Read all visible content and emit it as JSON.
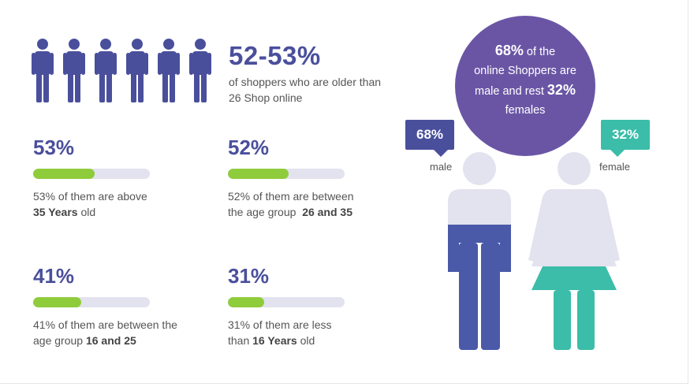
{
  "headline": {
    "value": "52-53%",
    "desc": "of shoppers who are older than 26 Shop online"
  },
  "stats": [
    {
      "pct": "53%",
      "fill": 0.53,
      "line1": "53% of them are above",
      "bold": "35 Years",
      "rest": " old"
    },
    {
      "pct": "52%",
      "fill": 0.52,
      "line1": "52% of them are between",
      "prefix": "the age group  ",
      "bold": "26 and 35"
    },
    {
      "pct": "41%",
      "fill": 0.41,
      "line1": "41% of them are between the",
      "prefix": "age group ",
      "bold": "16 and 25"
    },
    {
      "pct": "31%",
      "fill": 0.31,
      "line1": "31% of them are less",
      "prefix": "than ",
      "bold": "16 Years",
      "rest": " old"
    }
  ],
  "bubble": {
    "l1_bold": "68%",
    "l1_rest": " of the",
    "l2": "online Shoppers are",
    "l3_text": "male and rest ",
    "l3_bold": "32%",
    "l4": "females"
  },
  "male": {
    "pct": "68%",
    "label": "male",
    "share": 0.68
  },
  "female": {
    "pct": "32%",
    "label": "female",
    "share": 0.32
  },
  "colors": {
    "primary": "#4a4f9c",
    "green": "#8fcc3b",
    "teal": "#3bbda9",
    "bubble": "#6a55a5",
    "light": "#e3e2ef"
  },
  "icons": [
    "person-icon",
    "male-figure-icon",
    "female-figure-icon"
  ]
}
